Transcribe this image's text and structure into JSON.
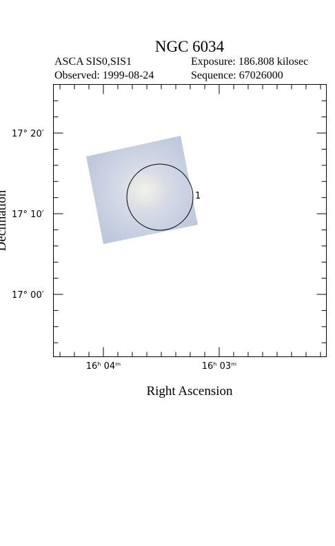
{
  "header": {
    "title": "NGC 6034",
    "instrument": "ASCA SIS0,SIS1",
    "exposure": "Exposure: 186.808 kilosec",
    "observed": "Observed: 1999-08-24",
    "sequence": "Sequence: 67026000"
  },
  "axes": {
    "x_label": "Right Ascension",
    "y_label": "Declination",
    "x_ticks": [
      "16ʰ 04ᵐ",
      "16ʰ 03ᵐ"
    ],
    "y_ticks": [
      "17° 20′",
      "17° 10′",
      "17° 00′"
    ]
  },
  "regions": [
    {
      "label": "1"
    }
  ]
}
